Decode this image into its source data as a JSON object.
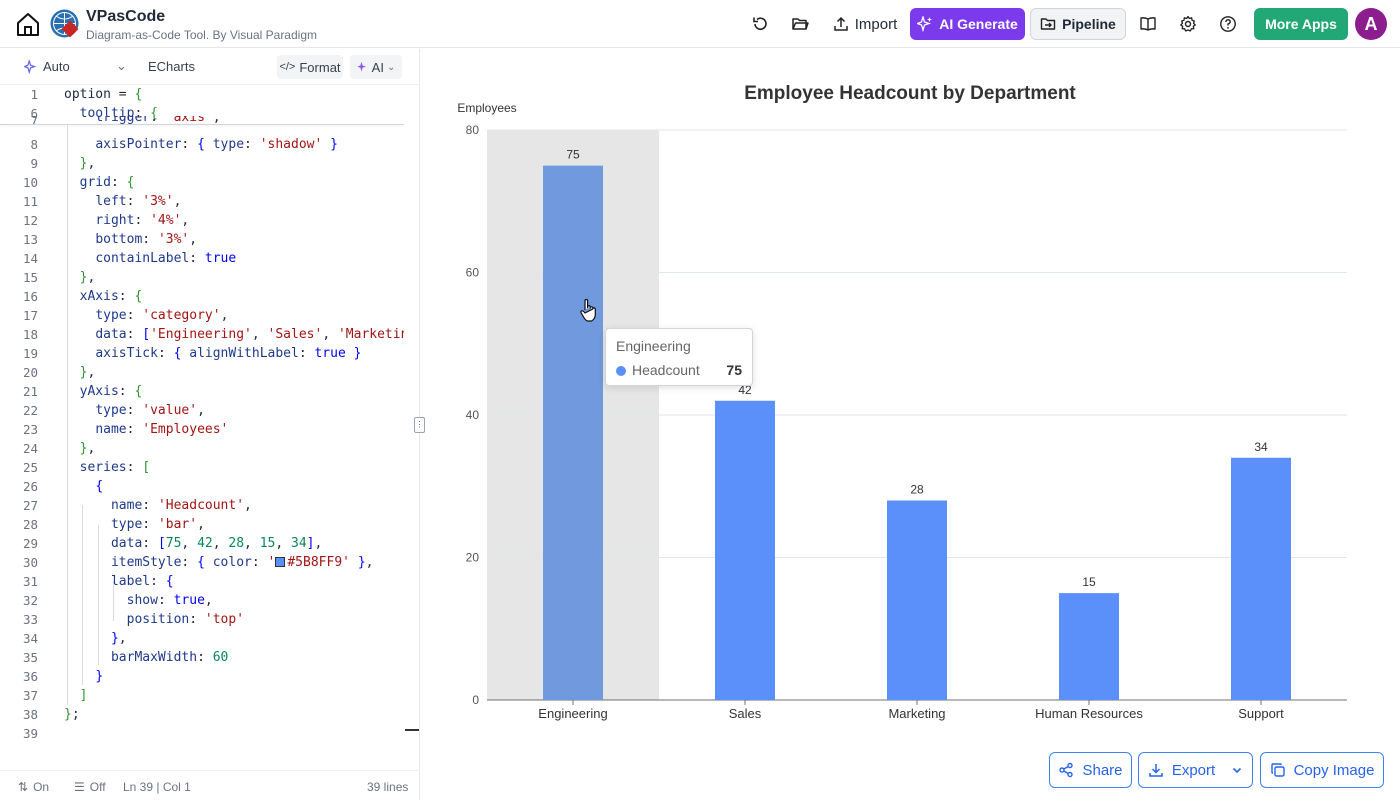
{
  "header": {
    "title": "VPasCode",
    "subtitle": "Diagram-as-Code Tool. By Visual Paradigm",
    "import_label": "Import",
    "ai_generate_label": "AI Generate",
    "pipeline_label": "Pipeline",
    "more_apps_label": "More Apps",
    "avatar_letter": "A",
    "colors": {
      "ai": "#7c3aed",
      "more_apps": "#22a776",
      "avatar": "#8b1d8f"
    }
  },
  "editor": {
    "toolbar": {
      "mode": "Auto",
      "library": "ECharts",
      "format": "Format",
      "ai": "AI"
    },
    "status": {
      "wrap": "On",
      "lint": "Off",
      "position": "Ln 39 | Col 1",
      "lines": "39 lines"
    }
  },
  "chart_actions": {
    "share": "Share",
    "export": "Export",
    "copy_image": "Copy Image"
  },
  "tooltip": {
    "category": "Engineering",
    "series": "Headcount",
    "value": "75"
  },
  "chart_data": {
    "type": "bar",
    "title": "Employee Headcount by Department",
    "ylabel": "Employees",
    "xlabel": "",
    "categories": [
      "Engineering",
      "Sales",
      "Marketing",
      "Human Resources",
      "Support"
    ],
    "series": [
      {
        "name": "Headcount",
        "values": [
          75,
          42,
          28,
          15,
          34
        ],
        "color": "#5B8FF9",
        "highlight_color": "#7199de"
      }
    ],
    "ylim": [
      0,
      80
    ],
    "yticks": [
      0,
      20,
      40,
      60,
      80
    ],
    "grid": true,
    "highlighted_category": "Engineering",
    "data_labels": true
  }
}
